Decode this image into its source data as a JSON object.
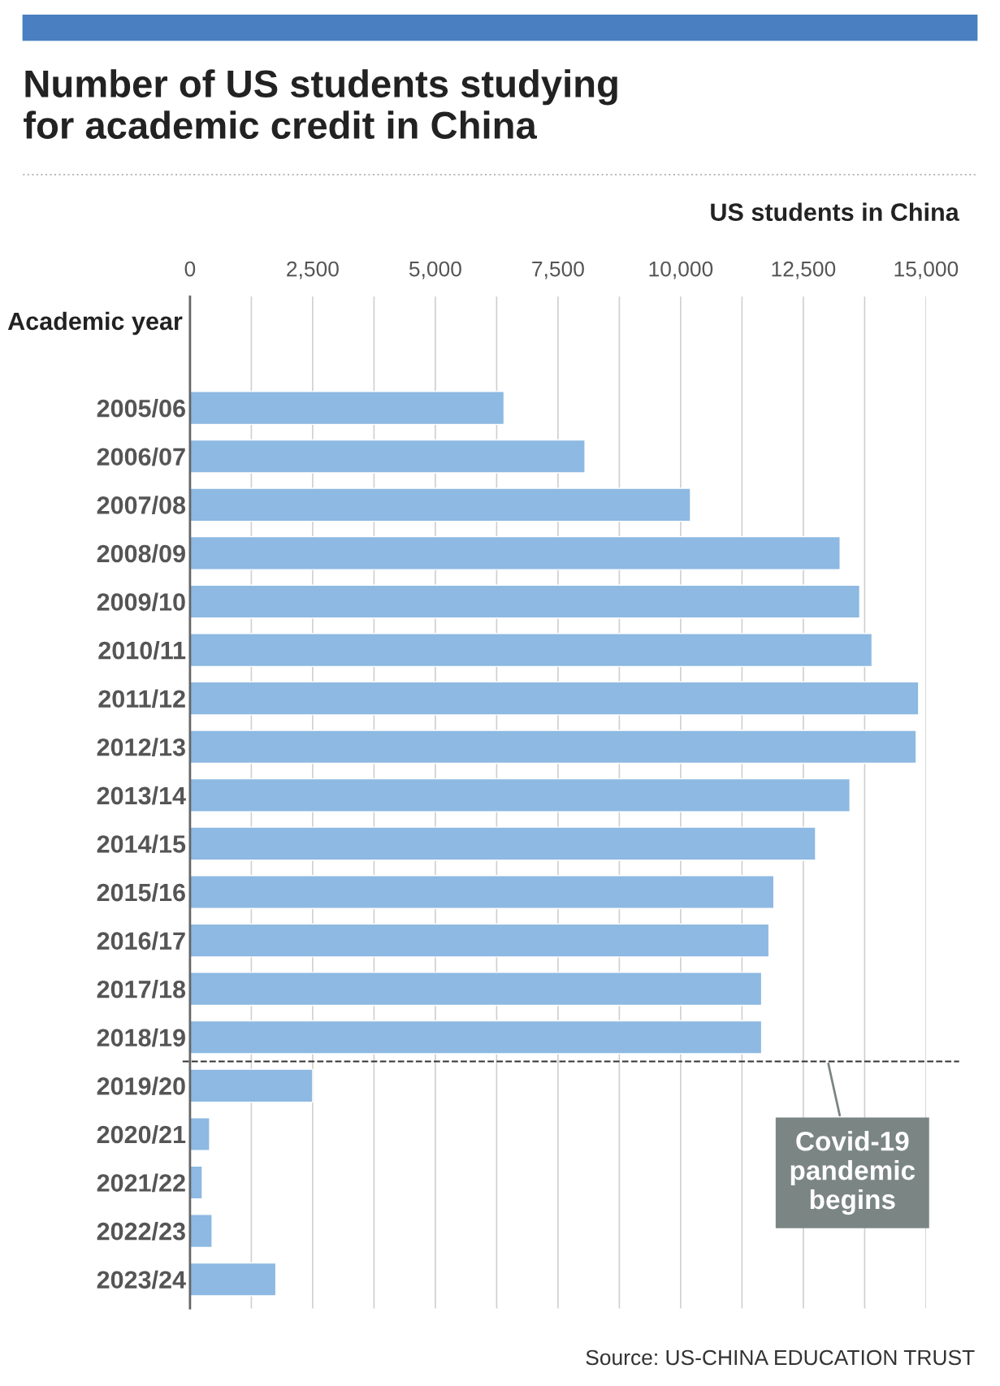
{
  "chart_data": {
    "type": "bar",
    "orientation": "horizontal",
    "title": "Number of US students studying\nfor academic credit in China",
    "xlabel": "US students in China",
    "ylabel": "Academic year",
    "categories": [
      "2005/06",
      "2006/07",
      "2007/08",
      "2008/09",
      "2009/10",
      "2010/11",
      "2011/12",
      "2012/13",
      "2013/14",
      "2014/15",
      "2015/16",
      "2016/17",
      "2017/18",
      "2018/19",
      "2019/20",
      "2020/21",
      "2021/22",
      "2022/23",
      "2023/24"
    ],
    "values": [
      6400,
      8050,
      10200,
      13250,
      13650,
      13900,
      14850,
      14800,
      13450,
      12750,
      11900,
      11800,
      11650,
      11650,
      2500,
      400,
      250,
      450,
      1750
    ],
    "color": "#8db9e2",
    "xlim": [
      0,
      15000
    ],
    "xticks": [
      0,
      {
        "value": 1250,
        "label": null
      },
      {
        "value": 2500,
        "label": "2,500"
      },
      {
        "value": 3750,
        "label": null
      },
      {
        "value": 5000,
        "label": "5,000"
      },
      {
        "value": 6250,
        "label": null
      },
      {
        "value": 7500,
        "label": "7,500"
      },
      {
        "value": 8750,
        "label": null
      },
      {
        "value": 10000,
        "label": "10,000"
      },
      {
        "value": 11250,
        "label": null
      },
      {
        "value": 12500,
        "label": "12,500"
      },
      {
        "value": 13750,
        "label": null
      },
      {
        "value": 15000,
        "label": "15,000"
      }
    ],
    "grid": "x",
    "ref_lines": [
      {
        "axis": "y",
        "value": "2019/20",
        "label": "Covid-19\npandemic\nbegins",
        "line_style": "dashed",
        "color": "#333333"
      }
    ],
    "annotations": [
      "Source: US-CHINA EDUCATION TRUST"
    ]
  }
}
